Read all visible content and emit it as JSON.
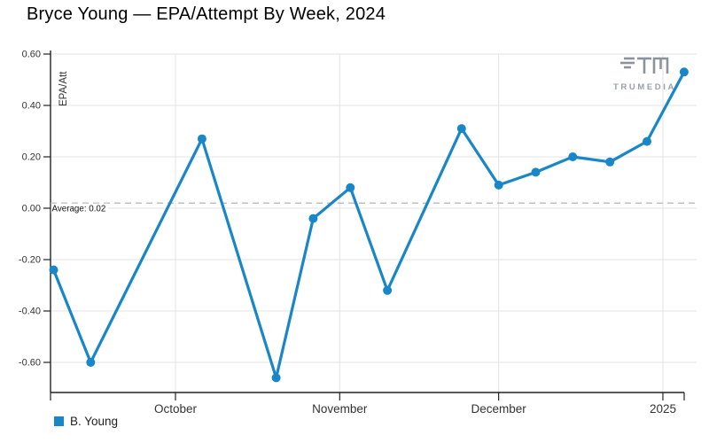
{
  "page": {
    "title": "Bryce Young — EPA/Attempt By Week, 2024"
  },
  "branding": {
    "logo_text": "TRUMEDIA"
  },
  "colors": {
    "line": "#1886c7",
    "grid": "#e3e3e3",
    "axis": "#222222",
    "tick_text": "#333333",
    "average_line": "#ababab",
    "logo": "#8d939b"
  },
  "chart_data": {
    "type": "line",
    "title": "Bryce Young — EPA/Attempt By Week, 2024",
    "xlabel": "",
    "ylabel": "EPA/Att",
    "x_axis_type": "time",
    "x_start_date": "2024-09-08",
    "x_end_date": "2025-01-05",
    "x_ticks": [
      {
        "label": "October",
        "date": "2024-10-01"
      },
      {
        "label": "November",
        "date": "2024-11-01"
      },
      {
        "label": "December",
        "date": "2024-12-01"
      },
      {
        "label": "2025",
        "date": "2025-01-01"
      }
    ],
    "y_ticks": [
      "0.60",
      "0.40",
      "0.20",
      "0.00",
      "-0.20",
      "-0.40",
      "-0.60"
    ],
    "ylim": [
      -0.72,
      0.6
    ],
    "grid": true,
    "legend_position": "bottom-left",
    "average_line": {
      "label": "Average: 0.02",
      "value": 0.02,
      "style": "dashed"
    },
    "series": [
      {
        "name": "B. Young",
        "color": "#1886c7",
        "points": [
          {
            "date": "2024-09-08",
            "value": -0.24
          },
          {
            "date": "2024-09-15",
            "value": -0.6
          },
          {
            "date": "2024-10-06",
            "value": 0.27
          },
          {
            "date": "2024-10-20",
            "value": -0.66
          },
          {
            "date": "2024-10-27",
            "value": -0.04
          },
          {
            "date": "2024-11-03",
            "value": 0.08
          },
          {
            "date": "2024-11-10",
            "value": -0.32
          },
          {
            "date": "2024-11-24",
            "value": 0.31
          },
          {
            "date": "2024-12-01",
            "value": 0.09
          },
          {
            "date": "2024-12-08",
            "value": 0.14
          },
          {
            "date": "2024-12-15",
            "value": 0.2
          },
          {
            "date": "2024-12-22",
            "value": 0.18
          },
          {
            "date": "2024-12-29",
            "value": 0.26
          },
          {
            "date": "2025-01-05",
            "value": 0.53
          }
        ]
      }
    ]
  }
}
